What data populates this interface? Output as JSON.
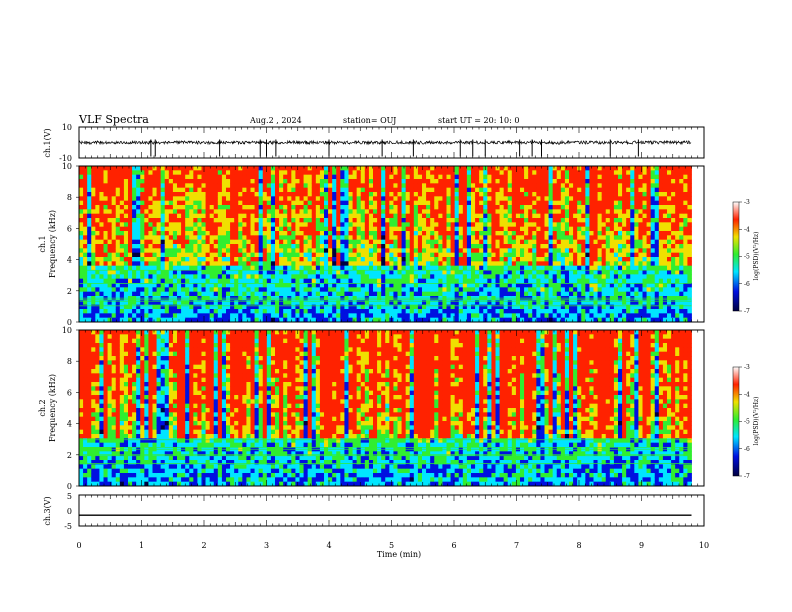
{
  "header": {
    "title": "VLF Spectra",
    "date": "Aug.2 , 2024",
    "station": "station= OUJ",
    "start": "start  UT  =   20: 10: 0"
  },
  "chart_data": [
    {
      "type": "line",
      "id": "waveform-ch1",
      "ylabel": "ch.1(V)",
      "ylim": [
        -10,
        10
      ],
      "yticks": [
        "10",
        "-10"
      ],
      "baseline": 0,
      "spike_times_min": [
        1.15,
        1.22,
        2.25,
        2.9,
        3.0,
        3.15,
        4.0,
        4.85,
        5.35,
        6.1,
        6.3,
        6.5,
        7.05,
        7.25,
        7.4,
        8.5,
        8.95
      ]
    },
    {
      "type": "heatmap",
      "id": "spectrogram-ch1",
      "ylabel": "ch.1 Frequency (kHz)",
      "ylim": [
        0,
        10
      ],
      "yticks": [
        "10",
        "8",
        "6",
        "4",
        "2",
        "0"
      ],
      "xlim": [
        0,
        9.8
      ],
      "upper_band": "red-yellow-green",
      "lower_band_khz": [
        0,
        3.5
      ],
      "colorbar": {
        "label": "log(PSD)(V²/Hz)",
        "ticks": [
          "-3",
          "-4",
          "-5",
          "-6",
          "-7"
        ],
        "range": [
          -7,
          -3
        ]
      }
    },
    {
      "type": "heatmap",
      "id": "spectrogram-ch2",
      "ylabel": "ch.2 Frequency (kHz)",
      "ylim": [
        0,
        10
      ],
      "yticks": [
        "10",
        "8",
        "6",
        "4",
        "2",
        "0"
      ],
      "xlim": [
        0,
        9.8
      ],
      "upper_band": "red",
      "lower_band_khz": [
        0,
        3.0
      ],
      "colorbar": {
        "label": "log(PSD)(V²/Hz)",
        "ticks": [
          "-3",
          "-4",
          "-5",
          "-6",
          "-7"
        ],
        "range": [
          -7,
          -3
        ]
      }
    },
    {
      "type": "line",
      "id": "waveform-ch3",
      "ylabel": "ch.3(V)",
      "ylim": [
        -5,
        5
      ],
      "yticks": [
        "5",
        "0",
        "-5"
      ],
      "value": -1.5
    }
  ],
  "x_axis": {
    "label": "Time  (min)",
    "range": [
      0,
      10
    ],
    "ticks": [
      "0",
      "1",
      "2",
      "3",
      "4",
      "5",
      "6",
      "7",
      "8",
      "9",
      "10"
    ]
  },
  "colors": {
    "red": "#ff2200",
    "yellow": "#f0e000",
    "green": "#30ee30",
    "cyan": "#00e5ff",
    "blue": "#0010e0",
    "dark": "#000040"
  }
}
